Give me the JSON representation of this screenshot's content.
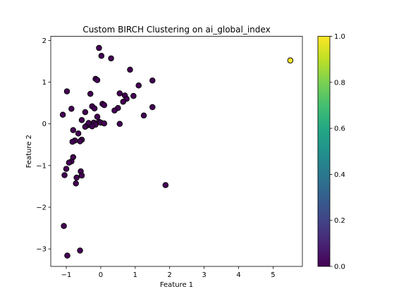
{
  "chart_data": {
    "type": "scatter",
    "title": "Custom BIRCH Clustering on ai_global_index",
    "xlabel": "Feature 1",
    "ylabel": "Feature 2",
    "xlim": [
      -1.45,
      5.85
    ],
    "ylim": [
      -3.42,
      2.1
    ],
    "xticks": [
      -1,
      0,
      1,
      2,
      3,
      4,
      5
    ],
    "yticks": [
      -3,
      -2,
      -1,
      0,
      1,
      2
    ],
    "xtick_labels": [
      "−1",
      "0",
      "1",
      "2",
      "3",
      "4",
      "5"
    ],
    "ytick_labels": [
      "−3",
      "−2",
      "−1",
      "0",
      "1",
      "2"
    ],
    "grid": false,
    "colormap": "viridis",
    "colorbar": {
      "range": [
        0.0,
        1.0
      ],
      "ticks": [
        0.0,
        0.2,
        0.4,
        0.6,
        0.8,
        1.0
      ],
      "tick_labels": [
        "0.0",
        "0.2",
        "0.4",
        "0.6",
        "0.8",
        "1.0"
      ]
    },
    "series": [
      {
        "cluster": 0,
        "color": "#440154",
        "points": [
          [
            -0.05,
            1.82
          ],
          [
            0.02,
            1.63
          ],
          [
            0.3,
            1.57
          ],
          [
            0.85,
            1.3
          ],
          [
            -0.15,
            1.08
          ],
          [
            -0.1,
            1.05
          ],
          [
            1.5,
            1.04
          ],
          [
            1.1,
            0.92
          ],
          [
            -0.98,
            0.78
          ],
          [
            -0.3,
            0.72
          ],
          [
            0.55,
            0.73
          ],
          [
            0.7,
            0.68
          ],
          [
            0.95,
            0.67
          ],
          [
            0.75,
            0.6
          ],
          [
            0.65,
            0.53
          ],
          [
            0.05,
            0.48
          ],
          [
            0.1,
            0.45
          ],
          [
            -0.25,
            0.42
          ],
          [
            -0.18,
            0.37
          ],
          [
            0.5,
            0.38
          ],
          [
            1.5,
            0.4
          ],
          [
            0.4,
            0.32
          ],
          [
            -0.85,
            0.36
          ],
          [
            -0.45,
            0.28
          ],
          [
            -1.1,
            0.22
          ],
          [
            1.25,
            0.2
          ],
          [
            -0.1,
            0.17
          ],
          [
            -0.55,
            0.09
          ],
          [
            -0.05,
            0.05
          ],
          [
            0.0,
            0.03
          ],
          [
            0.1,
            0.01
          ],
          [
            -0.2,
            0.03
          ],
          [
            -0.15,
            -0.02
          ],
          [
            -0.3,
            -0.03
          ],
          [
            -0.25,
            -0.06
          ],
          [
            -0.4,
            -0.04
          ],
          [
            -0.45,
            -0.07
          ],
          [
            -0.35,
            0.02
          ],
          [
            0.55,
            0.0
          ],
          [
            -0.8,
            -0.15
          ],
          [
            -0.65,
            -0.23
          ],
          [
            -0.75,
            -0.4
          ],
          [
            -0.55,
            -0.38
          ],
          [
            -0.6,
            -0.42
          ],
          [
            -0.82,
            -0.43
          ],
          [
            -0.8,
            -0.8
          ],
          [
            -0.85,
            -0.9
          ],
          [
            -0.92,
            -0.93
          ],
          [
            -1.0,
            -1.08
          ],
          [
            -1.05,
            -1.23
          ],
          [
            -0.58,
            -1.14
          ],
          [
            -0.55,
            -1.24
          ],
          [
            -0.7,
            -1.29
          ],
          [
            -0.72,
            -1.43
          ],
          [
            1.88,
            -1.47
          ],
          [
            -1.07,
            -2.45
          ],
          [
            -0.97,
            -3.16
          ],
          [
            -0.6,
            -3.04
          ]
        ]
      },
      {
        "cluster": 1,
        "color": "#fde725",
        "points": [
          [
            5.5,
            1.52
          ]
        ]
      }
    ]
  }
}
